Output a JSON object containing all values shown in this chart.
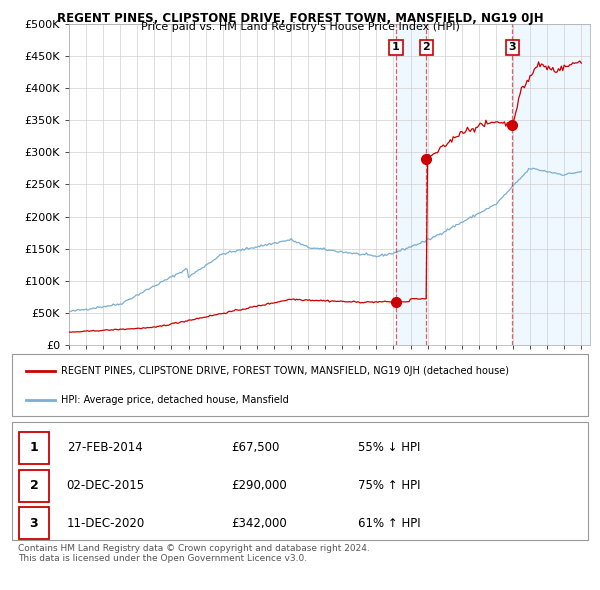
{
  "title": "REGENT PINES, CLIPSTONE DRIVE, FOREST TOWN, MANSFIELD, NG19 0JH",
  "subtitle": "Price paid vs. HM Land Registry's House Price Index (HPI)",
  "ylim": [
    0,
    500000
  ],
  "yticks": [
    0,
    50000,
    100000,
    150000,
    200000,
    250000,
    300000,
    350000,
    400000,
    450000,
    500000
  ],
  "ytick_labels": [
    "£0",
    "£50K",
    "£100K",
    "£150K",
    "£200K",
    "£250K",
    "£300K",
    "£350K",
    "£400K",
    "£450K",
    "£500K"
  ],
  "hpi_color": "#7bafd4",
  "sale_color": "#cc0000",
  "bg_color": "#ffffff",
  "grid_color": "#d0d0d0",
  "sale_points": [
    {
      "date": 2014.15,
      "price": 67500,
      "label": "1"
    },
    {
      "date": 2015.92,
      "price": 290000,
      "label": "2"
    },
    {
      "date": 2020.95,
      "price": 342000,
      "label": "3"
    }
  ],
  "vline_color": "#cc0000",
  "shade_color": "#ddeeff",
  "shade_alpha": 0.45,
  "legend_entries": [
    "REGENT PINES, CLIPSTONE DRIVE, FOREST TOWN, MANSFIELD, NG19 0JH (detached house)",
    "HPI: Average price, detached house, Mansfield"
  ],
  "table_rows": [
    {
      "num": "1",
      "date": "27-FEB-2014",
      "price": "£67,500",
      "pct": "55% ↓ HPI"
    },
    {
      "num": "2",
      "date": "02-DEC-2015",
      "price": "£290,000",
      "pct": "75% ↑ HPI"
    },
    {
      "num": "3",
      "date": "11-DEC-2020",
      "price": "£342,000",
      "pct": "61% ↑ HPI"
    }
  ],
  "footer": "Contains HM Land Registry data © Crown copyright and database right 2024.\nThis data is licensed under the Open Government Licence v3.0."
}
